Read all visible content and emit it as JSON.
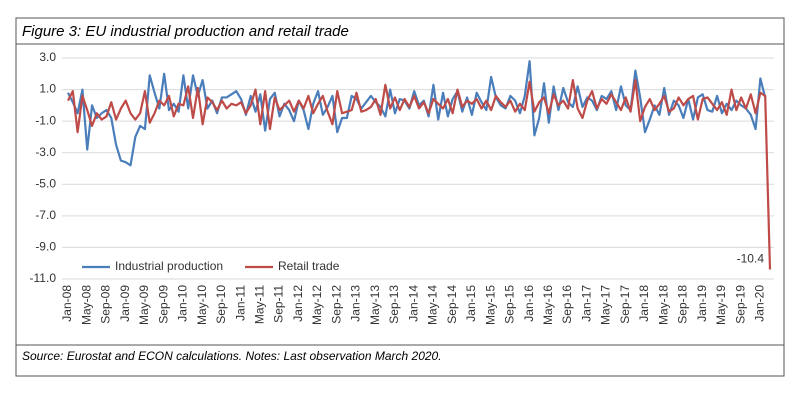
{
  "chart_data": {
    "type": "line",
    "title": "Figure 3: EU industrial production and retail trade",
    "source": "Source: Eurostat and ECON calculations. Notes: Last observation March 2020.",
    "categories": [
      "Jan-08",
      null,
      null,
      null,
      "May-08",
      null,
      null,
      null,
      "Sep-08",
      null,
      null,
      null,
      "Jan-09",
      null,
      null,
      null,
      "May-09",
      null,
      null,
      null,
      "Sep-09",
      null,
      null,
      null,
      "Jan-10",
      null,
      null,
      null,
      "May-10",
      null,
      null,
      null,
      "Sep-10",
      null,
      null,
      null,
      "Jan-11",
      null,
      null,
      null,
      "May-11",
      null,
      null,
      null,
      "Sep-11",
      null,
      null,
      null,
      "Jan-12",
      null,
      null,
      null,
      "May-12",
      null,
      null,
      null,
      "Sep-12",
      null,
      null,
      null,
      "Jan-13",
      null,
      null,
      null,
      "May-13",
      null,
      null,
      null,
      "Sep-13",
      null,
      null,
      null,
      "Jan-14",
      null,
      null,
      null,
      "May-14",
      null,
      null,
      null,
      "Sep-14",
      null,
      null,
      null,
      "Jan-15",
      null,
      null,
      null,
      "May-15",
      null,
      null,
      null,
      "Sep-15",
      null,
      null,
      null,
      "Jan-16",
      null,
      null,
      null,
      "May-16",
      null,
      null,
      null,
      "Sep-16",
      null,
      null,
      null,
      "Jan-17",
      null,
      null,
      null,
      "May-17",
      null,
      null,
      null,
      "Sep-17",
      null,
      null,
      null,
      "Jan-18",
      null,
      null,
      null,
      "May-18",
      null,
      null,
      null,
      "Sep-18",
      null,
      null,
      null,
      "Jan-19",
      null,
      null,
      null,
      "May-19",
      null,
      null,
      null,
      "Sep-19",
      null,
      null,
      null,
      "Jan-20",
      null,
      null
    ],
    "series": [
      {
        "name": "Industrial production",
        "color": "#4a7ebb",
        "values": [
          0.8,
          0.2,
          -0.5,
          1.0,
          -2.8,
          0.0,
          -0.8,
          -0.5,
          -0.3,
          -0.8,
          -2.5,
          -3.5,
          -3.6,
          -3.8,
          -2.0,
          -1.3,
          -1.5,
          1.9,
          0.8,
          -0.2,
          2.0,
          -0.3,
          0.1,
          -0.4,
          1.9,
          -0.2,
          1.9,
          0.6,
          1.6,
          -0.2,
          0.3,
          -0.5,
          0.5,
          0.5,
          0.7,
          0.9,
          0.4,
          -0.6,
          0.6,
          -0.4,
          0.7,
          -1.6,
          0.4,
          0.8,
          -0.7,
          0.1,
          -0.3,
          -1.0,
          0.3,
          -0.3,
          -1.5,
          0.1,
          0.9,
          -0.6,
          -0.1,
          0.6,
          -1.7,
          -0.8,
          -0.8,
          0.6,
          0.4,
          -0.2,
          0.2,
          0.6,
          0.2,
          -0.1,
          -0.7,
          1.0,
          -0.5,
          0.4,
          0.3,
          -0.2,
          0.9,
          0.0,
          0.3,
          -0.7,
          1.3,
          -0.9,
          0.8,
          -0.7,
          0.4,
          0.9,
          -0.4,
          0.5,
          -0.6,
          0.8,
          0.2,
          -0.3,
          1.8,
          0.5,
          0.0,
          -0.2,
          0.6,
          0.3,
          -0.5,
          0.6,
          2.8,
          -1.9,
          -0.8,
          1.4,
          -1.1,
          1.2,
          -0.3,
          1.1,
          0.2,
          -0.1,
          1.2,
          -0.1,
          0.5,
          0.3,
          -0.3,
          0.6,
          0.4,
          0.9,
          -0.3,
          1.2,
          0.0,
          -0.3,
          2.2,
          0.5,
          -1.7,
          -0.9,
          0.0,
          -0.6,
          1.1,
          -0.6,
          0.3,
          0.0,
          -0.8,
          0.4,
          -0.9,
          0.5,
          0.7,
          -0.3,
          -0.4,
          0.6,
          -0.5,
          0.1,
          -0.3,
          0.3,
          0.0,
          -0.2,
          -0.6,
          -1.5,
          1.7,
          0.5,
          null
        ]
      },
      {
        "name": "Retail trade",
        "color": "#be4b48",
        "values": [
          0.3,
          0.9,
          -1.7,
          0.6,
          -0.3,
          -1.3,
          -0.5,
          -0.9,
          -0.7,
          0.2,
          -0.9,
          -0.2,
          0.3,
          -0.5,
          -0.9,
          -0.5,
          0.9,
          -1.1,
          -0.5,
          0.3,
          0.0,
          0.6,
          -0.7,
          0.1,
          0.0,
          1.2,
          -0.8,
          1.1,
          -1.2,
          0.5,
          0.2,
          -0.3,
          0.3,
          -0.2,
          0.1,
          0.0,
          0.2,
          -0.5,
          0.0,
          1.0,
          -1.2,
          0.9,
          -1.5,
          0.5,
          -0.3,
          0.0,
          0.3,
          -0.4,
          0.3,
          -0.2,
          0.6,
          -0.5,
          0.1,
          0.6,
          -0.4,
          -1.2,
          0.9,
          -0.5,
          -0.4,
          -0.3,
          0.8,
          -0.4,
          -0.3,
          -0.1,
          0.4,
          -0.6,
          1.3,
          -0.2,
          0.5,
          -0.3,
          0.4,
          -0.1,
          0.6,
          -0.2,
          0.2,
          -0.5,
          0.4,
          0.1,
          -0.2,
          0.4,
          -0.5,
          1.0,
          -0.1,
          0.3,
          0.1,
          0.4,
          -0.2,
          0.3,
          -0.3,
          0.6,
          0.2,
          -0.1,
          0.3,
          -0.4,
          0.1,
          -0.3,
          1.5,
          -0.4,
          0.2,
          0.5,
          -0.5,
          0.7,
          0.0,
          0.3,
          -0.2,
          1.6,
          -0.2,
          -0.8,
          0.3,
          0.9,
          -0.2,
          0.4,
          0.1,
          0.7,
          0.2,
          -0.3,
          0.5,
          -0.4,
          1.6,
          -1.0,
          -0.1,
          0.4,
          -0.3,
          0.1,
          0.6,
          -0.4,
          -0.2,
          0.5,
          0.0,
          0.4,
          0.6,
          -0.9,
          0.4,
          0.5,
          0.1,
          -0.3,
          0.2,
          -0.6,
          1.0,
          -0.3,
          0.5,
          -0.2,
          0.7,
          -0.5,
          0.8,
          0.6,
          -10.4
        ]
      }
    ],
    "ylim": [
      -11,
      3
    ],
    "yticks": [
      {
        "value": 3,
        "label": "3.0"
      },
      {
        "value": 1,
        "label": "1.0"
      },
      {
        "value": -1,
        "label": "-1.0"
      },
      {
        "value": -3,
        "label": "-3.0"
      },
      {
        "value": -5,
        "label": "-5.0"
      },
      {
        "value": -7,
        "label": "-7.0"
      },
      {
        "value": -9,
        "label": "-9.0"
      },
      {
        "value": -11,
        "label": "-11.0"
      }
    ],
    "grid": true,
    "legend": "lower left"
  }
}
